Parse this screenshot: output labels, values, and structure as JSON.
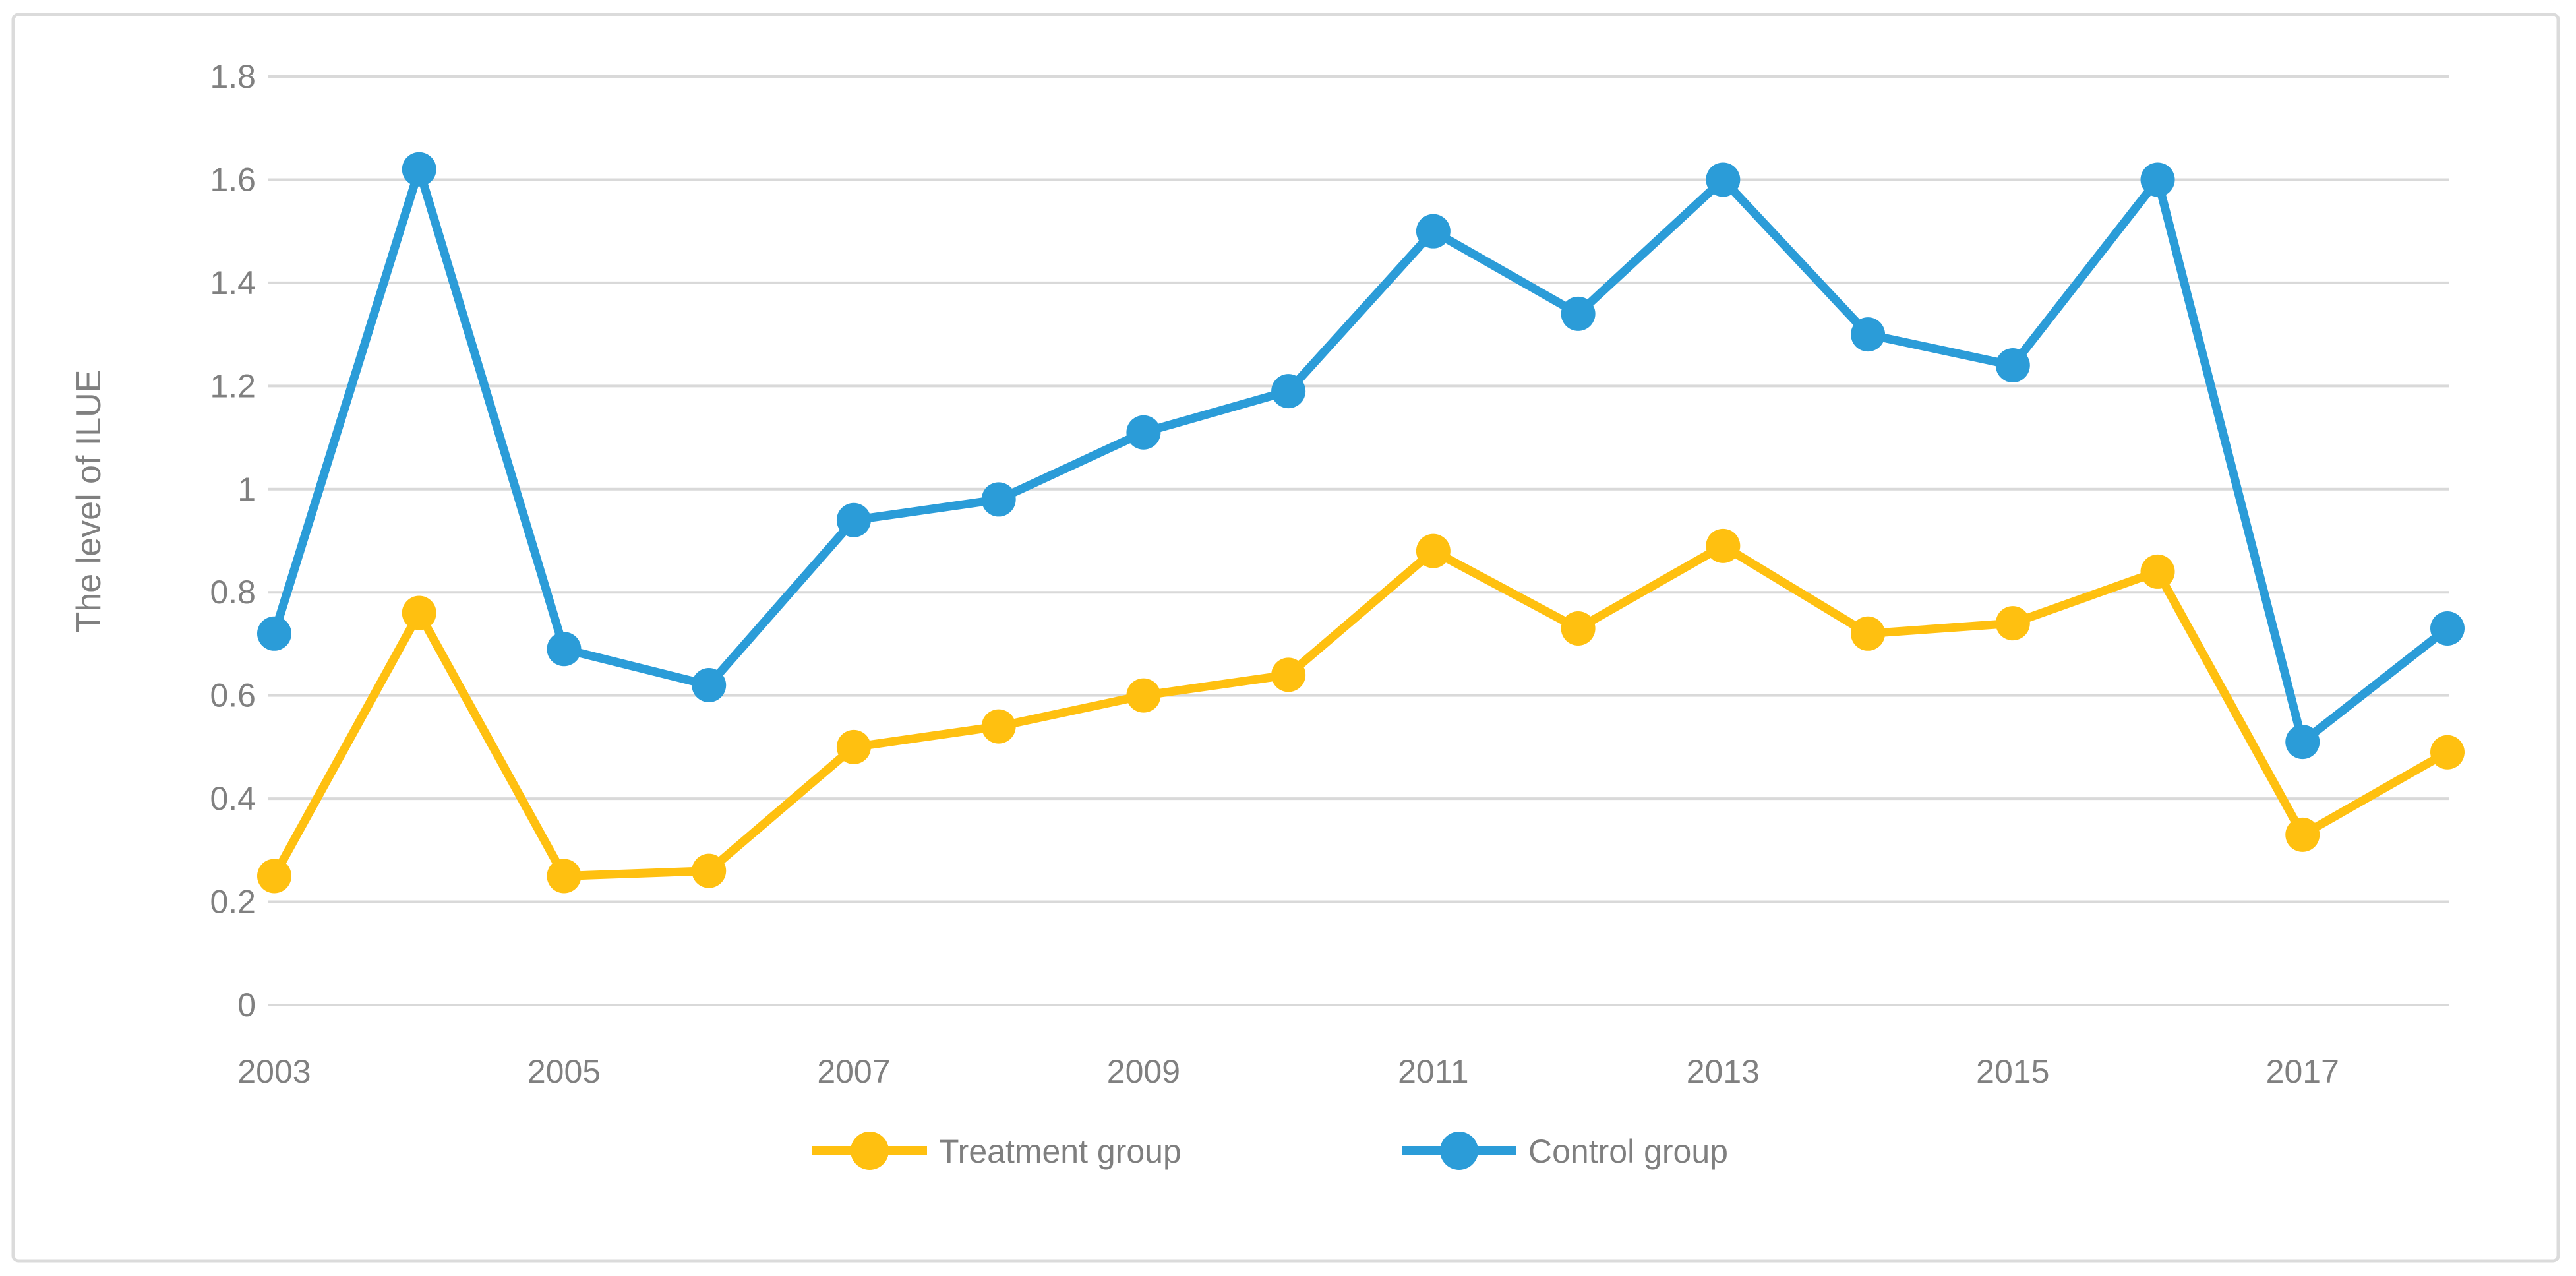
{
  "chart_data": {
    "type": "line",
    "title": "",
    "xlabel": "",
    "ylabel": "The level of ILUE",
    "ylim": [
      0,
      1.8
    ],
    "ytick_step": 0.2,
    "ytick_labels": [
      "0",
      "0.2",
      "0.4",
      "0.6",
      "0.8",
      "1",
      "1.2",
      "1.4",
      "1.6",
      "1.8"
    ],
    "categories": [
      2003,
      2004,
      2005,
      2006,
      2007,
      2008,
      2009,
      2010,
      2011,
      2012,
      2013,
      2014,
      2015,
      2016,
      2017,
      2018
    ],
    "xtick_labels": [
      "2003",
      "2005",
      "2007",
      "2009",
      "2011",
      "2013",
      "2015",
      "2017"
    ],
    "grid": "horizontal",
    "legend_position": "bottom-center",
    "marker": "circle",
    "series": [
      {
        "name": "Treatment group",
        "color": "#FFC010",
        "values": [
          0.25,
          0.76,
          0.25,
          0.26,
          0.5,
          0.54,
          0.6,
          0.64,
          0.88,
          0.73,
          0.89,
          0.72,
          0.74,
          0.84,
          0.33,
          0.49
        ]
      },
      {
        "name": "Control group",
        "color": "#2B9CD8",
        "values": [
          0.72,
          1.62,
          0.69,
          0.62,
          0.94,
          0.98,
          1.11,
          1.19,
          1.5,
          1.34,
          1.6,
          1.3,
          1.24,
          1.6,
          0.51,
          0.73
        ]
      }
    ]
  },
  "colors": {
    "gridline": "#D9D9D9",
    "axis_line": "#D9D9D9",
    "frame_border": "#DBDBDB",
    "axis_text": "#808080",
    "legend_text": "#7F7F7F",
    "background": "#FFFFFF"
  }
}
